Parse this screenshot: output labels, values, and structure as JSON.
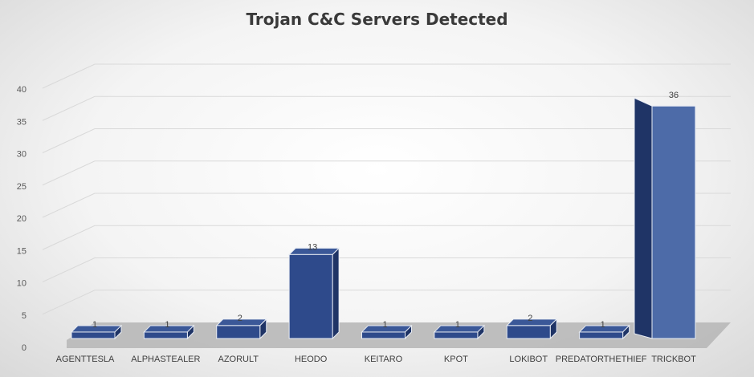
{
  "chart_data": {
    "type": "bar",
    "title": "Trojan C&C Servers Detected",
    "categories": [
      "AGENTTESLA",
      "ALPHASTEALER",
      "AZORULT",
      "HEODO",
      "KEITARO",
      "KPOT",
      "LOKIBOT",
      "PREDATORTHETHIEF",
      "TRICKBOT"
    ],
    "values": [
      1,
      1,
      2,
      13,
      1,
      1,
      2,
      1,
      36
    ],
    "data_labels": [
      "1",
      "1",
      "2",
      "13",
      "1",
      "1",
      "2",
      "1",
      "36"
    ],
    "ylim": [
      0,
      40
    ],
    "yticks": [
      "0",
      "5",
      "10",
      "15",
      "20",
      "25",
      "30",
      "35",
      "40"
    ],
    "style": "3d-column",
    "grid": true,
    "legend": "none",
    "colors": {
      "bar_front": "#2e4a8b",
      "bar_front_light": "#4d6ba8",
      "bar_side": "#1f3466",
      "bar_top": "#3b5898",
      "bar_edge": "#e8ecf4",
      "floor": "#b8b8b8",
      "gridline": "#d9d9d9"
    }
  }
}
